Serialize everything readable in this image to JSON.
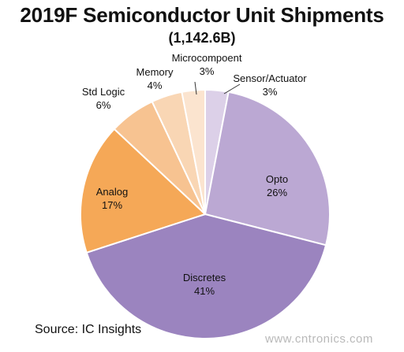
{
  "chart_data": {
    "type": "pie",
    "title": "2019F Semiconductor Unit Shipments",
    "subtitle": "(1,142.6B)",
    "slices": [
      {
        "label": "Sensor/Actuator",
        "value": 3,
        "value_label": "3%",
        "color": "#dcd0e8"
      },
      {
        "label": "Opto",
        "value": 26,
        "value_label": "26%",
        "color": "#bba8d3"
      },
      {
        "label": "Discretes",
        "value": 41,
        "value_label": "41%",
        "color": "#9b84bf"
      },
      {
        "label": "Analog",
        "value": 17,
        "value_label": "17%",
        "color": "#f5a857"
      },
      {
        "label": "Std Logic",
        "value": 6,
        "value_label": "6%",
        "color": "#f7c391"
      },
      {
        "label": "Memory",
        "value": 4,
        "value_label": "4%",
        "color": "#f9d6b4"
      },
      {
        "label": "Microcompoent",
        "value": 3,
        "value_label": "3%",
        "color": "#fbe4cf"
      }
    ],
    "start_angle_deg": 0,
    "direction": "clockwise"
  },
  "source": "Source:  IC Insights",
  "watermark": "www.cntronics.com"
}
